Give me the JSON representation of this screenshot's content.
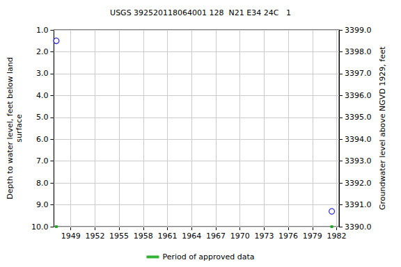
{
  "chart_data": {
    "type": "scatter",
    "title": "USGS 392520118064001 128  N21 E34 24C   1",
    "y_label": "Depth to water level, feet below land\nsurface",
    "y2_label": "Groundwater level above NGVD 1929, feet",
    "x": [
      1947.2,
      1981.4
    ],
    "series": [
      {
        "values": [
          1.5,
          9.3
        ],
        "color": "#0000cc",
        "marker": "circle_open"
      },
      {
        "name": "Period of approved data",
        "values": [
          10.0,
          10.0
        ],
        "color": "#00a000",
        "marker": "square"
      }
    ],
    "xlim": [
      1946.9,
      1982.3
    ],
    "xticks": [
      1949,
      1952,
      1955,
      1958,
      1961,
      1964,
      1967,
      1970,
      1973,
      1976,
      1979,
      1982
    ],
    "ylim": [
      10.0,
      1.0
    ],
    "yticks": [
      {
        "value": 1,
        "label": "1.0"
      },
      {
        "value": 2,
        "label": "2.0"
      },
      {
        "value": 3,
        "label": "3.0"
      },
      {
        "value": 4,
        "label": "4.0"
      },
      {
        "value": 5,
        "label": "5.0"
      },
      {
        "value": 6,
        "label": "6.0"
      },
      {
        "value": 7,
        "label": "7.0"
      },
      {
        "value": 8,
        "label": "8.0"
      },
      {
        "value": 9,
        "label": "9.0"
      },
      {
        "value": 10,
        "label": "10.0"
      }
    ],
    "y2lim": [
      3390.0,
      3399.0
    ],
    "y2ticks": [
      {
        "value": 3390,
        "label": "3390.0"
      },
      {
        "value": 3391,
        "label": "3391.0"
      },
      {
        "value": 3392,
        "label": "3392.0"
      },
      {
        "value": 3393,
        "label": "3393.0"
      },
      {
        "value": 3394,
        "label": "3394.0"
      },
      {
        "value": 3395,
        "label": "3395.0"
      },
      {
        "value": 3396,
        "label": "3396.0"
      },
      {
        "value": 3397,
        "label": "3397.0"
      },
      {
        "value": 3398,
        "label": "3398.0"
      },
      {
        "value": 3399,
        "label": "3399.0"
      }
    ],
    "grid": true,
    "legend": "bottom"
  }
}
